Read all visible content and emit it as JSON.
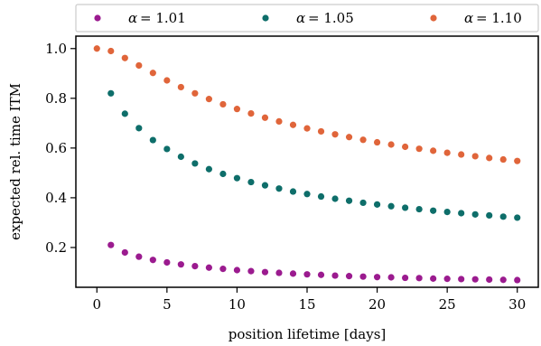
{
  "chart_data": {
    "type": "scatter",
    "xlabel": "position lifetime [days]",
    "ylabel": "expected rel. time ITM",
    "xlim": [
      -1.5,
      31.5
    ],
    "ylim": [
      0.04,
      1.05
    ],
    "xticks": [
      "0",
      "5",
      "10",
      "15",
      "20",
      "25",
      "30"
    ],
    "yticks": [
      "0.2",
      "0.4",
      "0.6",
      "0.8",
      "1.0"
    ],
    "grid": false,
    "legend_position": "top, above plot",
    "series": [
      {
        "name": "α = 1.01",
        "legend_symbol": "α",
        "legend_value": "= 1.01",
        "color": "#9b1b8f",
        "x": [
          1,
          2,
          3,
          4,
          5,
          6,
          7,
          8,
          9,
          10,
          11,
          12,
          13,
          14,
          15,
          16,
          17,
          18,
          19,
          20,
          21,
          22,
          23,
          24,
          25,
          26,
          27,
          28,
          29,
          30
        ],
        "y": [
          0.21,
          0.18,
          0.163,
          0.15,
          0.14,
          0.132,
          0.125,
          0.119,
          0.114,
          0.109,
          0.105,
          0.101,
          0.098,
          0.095,
          0.092,
          0.09,
          0.087,
          0.085,
          0.083,
          0.081,
          0.08,
          0.078,
          0.077,
          0.075,
          0.074,
          0.073,
          0.072,
          0.071,
          0.07,
          0.069
        ]
      },
      {
        "name": "α = 1.05",
        "legend_symbol": "α",
        "legend_value": "= 1.05",
        "color": "#0e6e6a",
        "x": [
          1,
          2,
          3,
          4,
          5,
          6,
          7,
          8,
          9,
          10,
          11,
          12,
          13,
          14,
          15,
          16,
          17,
          18,
          19,
          20,
          21,
          22,
          23,
          24,
          25,
          26,
          27,
          28,
          29,
          30
        ],
        "y": [
          0.82,
          0.738,
          0.68,
          0.632,
          0.596,
          0.565,
          0.538,
          0.515,
          0.496,
          0.479,
          0.463,
          0.45,
          0.437,
          0.425,
          0.415,
          0.405,
          0.396,
          0.388,
          0.38,
          0.373,
          0.366,
          0.36,
          0.354,
          0.348,
          0.343,
          0.338,
          0.333,
          0.329,
          0.324,
          0.32
        ]
      },
      {
        "name": "α = 1.10",
        "legend_symbol": "α",
        "legend_value": "= 1.10",
        "color": "#e0653a",
        "x": [
          0,
          1,
          2,
          3,
          4,
          5,
          6,
          7,
          8,
          9,
          10,
          11,
          12,
          13,
          14,
          15,
          16,
          17,
          18,
          19,
          20,
          21,
          22,
          23,
          24,
          25,
          26,
          27,
          28,
          29,
          30
        ],
        "y": [
          1.0,
          0.99,
          0.962,
          0.932,
          0.902,
          0.872,
          0.845,
          0.82,
          0.797,
          0.776,
          0.757,
          0.739,
          0.722,
          0.707,
          0.693,
          0.679,
          0.667,
          0.655,
          0.644,
          0.633,
          0.623,
          0.614,
          0.605,
          0.597,
          0.589,
          0.581,
          0.574,
          0.567,
          0.56,
          0.554,
          0.548
        ]
      }
    ]
  }
}
